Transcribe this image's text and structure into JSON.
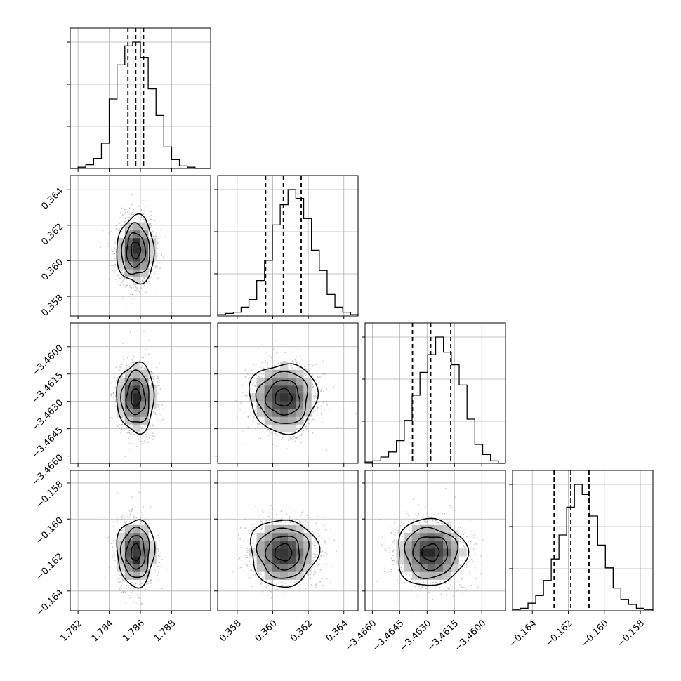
{
  "chart_data": {
    "type": "corner",
    "title": "",
    "parameters": [
      {
        "lim": [
          1.7815,
          1.7905
        ],
        "mean": 1.7857,
        "sigma": 0.0006,
        "quantiles": [
          1.7852,
          1.7857,
          1.7862
        ],
        "ticks": [
          1.782,
          1.784,
          1.786,
          1.788
        ],
        "tick_labels": [
          "1.782",
          "1.784",
          "1.786",
          "1.788"
        ]
      },
      {
        "lim": [
          0.3569,
          0.3648
        ],
        "mean": 0.3606,
        "sigma": 0.00095,
        "quantiles": [
          0.3596,
          0.3606,
          0.3616
        ],
        "ticks": [
          0.358,
          0.36,
          0.362,
          0.364
        ],
        "tick_labels": [
          "0.358",
          "0.360",
          "0.362",
          "0.364"
        ]
      },
      {
        "lim": [
          -3.4664,
          -3.4587
        ],
        "mean": -3.4628,
        "sigma": 0.00095,
        "quantiles": [
          -3.4638,
          -3.4628,
          -3.4617
        ],
        "ticks": [
          -3.466,
          -3.4645,
          -3.463,
          -3.4615,
          -3.46
        ],
        "tick_labels": [
          "−3.4660",
          "−3.4645",
          "−3.4630",
          "−3.4615",
          "−3.4600"
        ]
      },
      {
        "lim": [
          -0.1651,
          -0.1573
        ],
        "mean": -0.16186,
        "sigma": 0.00093,
        "quantiles": [
          -0.16279,
          -0.16186,
          -0.16085
        ],
        "ticks": [
          -0.164,
          -0.162,
          -0.16,
          -0.158
        ],
        "tick_labels": [
          "−0.164",
          "−0.162",
          "−0.160",
          "−0.158"
        ]
      }
    ],
    "histograms": [
      {
        "bin_edges": [
          1.7815,
          1.782,
          1.7825,
          1.783,
          1.7835,
          1.784,
          1.7845,
          1.785,
          1.7855,
          1.786,
          1.7865,
          1.787,
          1.7875,
          1.788,
          1.7885,
          1.789,
          1.7895,
          1.79,
          1.7905
        ],
        "counts": [
          0,
          1,
          3,
          8,
          20,
          55,
          82,
          97,
          100,
          88,
          63,
          42,
          17,
          7,
          2,
          1,
          0,
          0
        ]
      },
      {
        "bin_edges": [
          0.3569,
          0.35734,
          0.35778,
          0.35822,
          0.35866,
          0.3591,
          0.35954,
          0.35998,
          0.36042,
          0.36086,
          0.3613,
          0.36174,
          0.36218,
          0.36262,
          0.36306,
          0.3635,
          0.36394,
          0.36438,
          0.3648
        ],
        "counts": [
          1,
          2,
          3,
          7,
          13,
          28,
          44,
          72,
          88,
          100,
          93,
          77,
          52,
          36,
          17,
          7,
          3,
          1
        ]
      },
      {
        "bin_edges": [
          -3.4664,
          -3.46597,
          -3.46554,
          -3.46511,
          -3.46468,
          -3.46425,
          -3.46382,
          -3.46339,
          -3.46296,
          -3.46253,
          -3.4621,
          -3.46167,
          -3.46124,
          -3.46081,
          -3.46038,
          -3.45995,
          -3.45952,
          -3.45909,
          -3.4587
        ],
        "counts": [
          1,
          2,
          5,
          9,
          18,
          34,
          54,
          72,
          86,
          100,
          88,
          78,
          62,
          35,
          15,
          7,
          2,
          0
        ]
      },
      {
        "bin_edges": [
          -0.1651,
          -0.16467,
          -0.16424,
          -0.16381,
          -0.16338,
          -0.16295,
          -0.16252,
          -0.16209,
          -0.16166,
          -0.16123,
          -0.1608,
          -0.16037,
          -0.15994,
          -0.15951,
          -0.15908,
          -0.15865,
          -0.15822,
          -0.15779,
          -0.1573
        ],
        "counts": [
          1,
          2,
          6,
          12,
          24,
          41,
          60,
          82,
          100,
          92,
          75,
          52,
          34,
          18,
          9,
          5,
          2,
          1
        ]
      }
    ],
    "contour_levels_sigma": [
      0.5,
      1.0,
      1.5,
      2.0
    ],
    "grid": true,
    "colors": {
      "ink": "#000000",
      "grid": "#b0b0b0",
      "points": "#9a9a9a",
      "background": "#ffffff"
    }
  }
}
